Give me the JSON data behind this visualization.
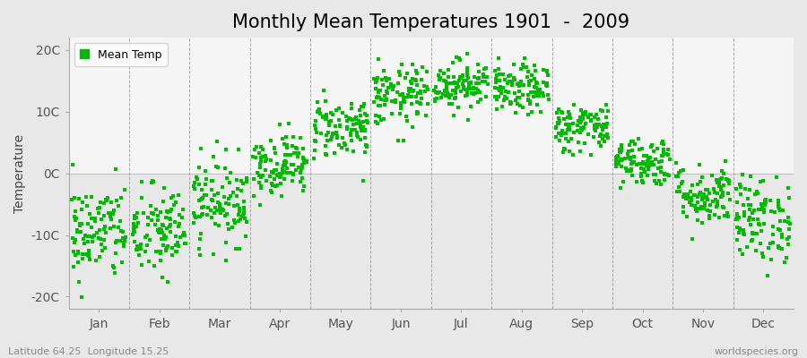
{
  "title": "Monthly Mean Temperatures 1901  -  2009",
  "ylabel": "Temperature",
  "xlabel_bottom_left": "Latitude 64.25  Longitude 15.25",
  "xlabel_bottom_right": "worldspecies.org",
  "ylim": [
    -22,
    22
  ],
  "yticks": [
    -20,
    -10,
    0,
    10,
    20
  ],
  "ytick_labels": [
    "-20C",
    "-10C",
    "0C",
    "10C",
    "20C"
  ],
  "months": [
    "Jan",
    "Feb",
    "Mar",
    "Apr",
    "May",
    "Jun",
    "Jul",
    "Aug",
    "Sep",
    "Oct",
    "Nov",
    "Dec"
  ],
  "month_means": [
    -9.5,
    -9.5,
    -4.5,
    1.5,
    7.5,
    12.5,
    14.5,
    13.5,
    7.5,
    2.0,
    -3.5,
    -7.5
  ],
  "month_stds": [
    4.0,
    3.8,
    3.5,
    2.5,
    2.5,
    2.5,
    2.0,
    2.0,
    2.0,
    2.0,
    2.5,
    3.5
  ],
  "n_years": 109,
  "dot_color": "#00BB00",
  "dot_size": 5,
  "background_color": "#e8e8e8",
  "plot_bg_lower": "#e8e8e8",
  "plot_bg_upper": "#f0f0f0",
  "title_fontsize": 15,
  "axis_fontsize": 10,
  "tick_fontsize": 10,
  "grid_color": "#888888",
  "seed": 42,
  "zero_band_color": "#f5f5f5"
}
